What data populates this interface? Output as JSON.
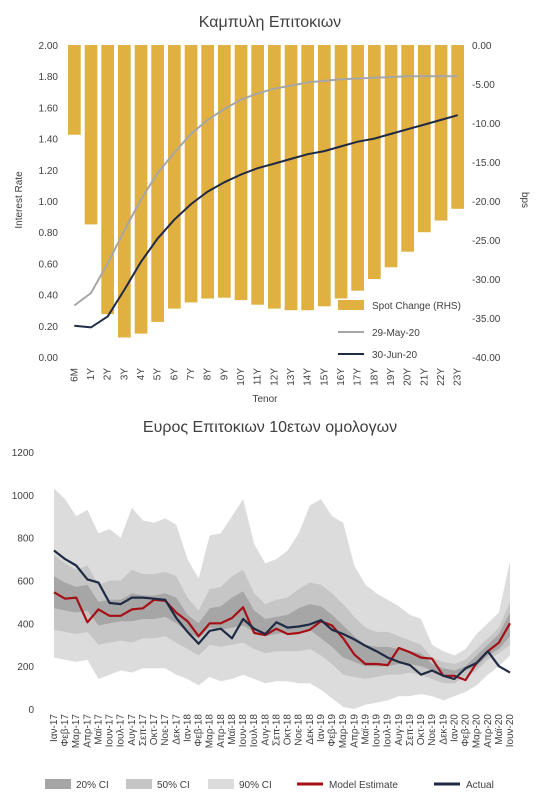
{
  "chart_data": [
    {
      "type": "bar",
      "title": "Καμπυλη Επιτοκιων",
      "xlabel": "Tenor",
      "ylabel": "Interest Rate",
      "y2label": "bps",
      "categories": [
        "6M",
        "1Y",
        "2Y",
        "3Y",
        "4Y",
        "5Y",
        "6Y",
        "7Y",
        "8Y",
        "9Y",
        "10Y",
        "11Y",
        "12Y",
        "13Y",
        "14Y",
        "15Y",
        "16Y",
        "17Y",
        "18Y",
        "19Y",
        "20Y",
        "21Y",
        "22Y",
        "23Y"
      ],
      "ylim": [
        0,
        2.0
      ],
      "yticks": [
        "0.00",
        "0.20",
        "0.40",
        "0.60",
        "0.80",
        "1.00",
        "1.20",
        "1.40",
        "1.60",
        "1.80",
        "2.00"
      ],
      "y2lim": [
        -40,
        0
      ],
      "y2ticks": [
        "-40.00",
        "-35.00",
        "-30.00",
        "-25.00",
        "-20.00",
        "-15.00",
        "-10.00",
        "-5.00",
        "0.00"
      ],
      "series": [
        {
          "name": "Spot Change (RHS)",
          "type": "bar",
          "axis": "right",
          "color": "#E0B040",
          "values": [
            -11.5,
            -23,
            -34.5,
            -37.5,
            -37,
            -35.5,
            -33.8,
            -33,
            -32.5,
            -32.4,
            -32.7,
            -33.3,
            -33.8,
            -34,
            -34,
            -33.5,
            -32.5,
            -31.5,
            -30,
            -28.5,
            -26.5,
            -24,
            -22.5,
            -21
          ]
        },
        {
          "name": "29-May-20",
          "type": "line",
          "axis": "left",
          "color": "#A6A6A6",
          "values": [
            0.33,
            0.41,
            0.6,
            0.81,
            1.01,
            1.18,
            1.31,
            1.43,
            1.52,
            1.59,
            1.65,
            1.69,
            1.72,
            1.74,
            1.76,
            1.77,
            1.78,
            1.785,
            1.79,
            1.795,
            1.8,
            1.8,
            1.8,
            1.8
          ]
        },
        {
          "name": "30-Jun-20",
          "type": "line",
          "axis": "left",
          "color": "#1F2A44",
          "values": [
            0.2,
            0.19,
            0.26,
            0.43,
            0.61,
            0.76,
            0.88,
            0.98,
            1.06,
            1.12,
            1.17,
            1.21,
            1.24,
            1.27,
            1.3,
            1.32,
            1.35,
            1.38,
            1.4,
            1.43,
            1.46,
            1.49,
            1.52,
            1.55
          ]
        }
      ],
      "legend": "bottom-right"
    },
    {
      "type": "line",
      "title": "Ευρος Επιτοκιων 10ετων ομολογων",
      "x": [
        "Ιαν-17",
        "Φεβ-17",
        "Μαρ-17",
        "Απρ-17",
        "Μαϊ-17",
        "Ιουν-17",
        "Ιουλ-17",
        "Αυγ-17",
        "Σεπ-17",
        "Οκτ-17",
        "Νοε-17",
        "Δεκ-17",
        "Ιαν-18",
        "Φεβ-18",
        "Μαρ-18",
        "Απρ-18",
        "Μαϊ-18",
        "Ιουν-18",
        "Ιουλ-18",
        "Αυγ-18",
        "Σεπ-18",
        "Οκτ-18",
        "Νοε-18",
        "Δεκ-18",
        "Ιαν-19",
        "Φεβ-19",
        "Μαρ-19",
        "Απρ-19",
        "Μαϊ-19",
        "Ιουν-19",
        "Ιουλ-19",
        "Αυγ-19",
        "Σεπ-19",
        "Οκτ-19",
        "Νοε-19",
        "Δεκ-19",
        "Ιαν-20",
        "Φεβ-20",
        "Μαρ-20",
        "Απρ-20",
        "Μαϊ-20",
        "Ιουν-20"
      ],
      "ylim": [
        0,
        1200
      ],
      "yticks": [
        "0",
        "200",
        "400",
        "600",
        "800",
        "1000",
        "1200"
      ],
      "series": [
        {
          "name": "90% CI",
          "type": "band",
          "color": "#DCDCDC",
          "lower": [
            240,
            230,
            220,
            230,
            140,
            160,
            180,
            170,
            190,
            190,
            190,
            160,
            140,
            110,
            150,
            130,
            140,
            160,
            140,
            120,
            130,
            130,
            120,
            120,
            90,
            50,
            10,
            0,
            20,
            30,
            40,
            60,
            60,
            70,
            60,
            40,
            60,
            80,
            110,
            160,
            200,
            250
          ],
          "upper": [
            1030,
            980,
            900,
            930,
            820,
            840,
            800,
            940,
            880,
            870,
            890,
            860,
            700,
            610,
            810,
            820,
            900,
            980,
            770,
            680,
            700,
            740,
            820,
            950,
            980,
            900,
            870,
            670,
            580,
            540,
            510,
            480,
            440,
            420,
            300,
            270,
            250,
            280,
            350,
            400,
            450,
            690
          ]
        },
        {
          "name": "50% CI",
          "type": "band",
          "color": "#C6C6C6",
          "lower": [
            370,
            360,
            350,
            360,
            300,
            310,
            320,
            310,
            330,
            330,
            340,
            310,
            280,
            250,
            300,
            290,
            300,
            310,
            280,
            260,
            270,
            270,
            270,
            280,
            250,
            210,
            160,
            150,
            140,
            150,
            160,
            160,
            170,
            160,
            140,
            120,
            120,
            150,
            180,
            230,
            260,
            300
          ],
          "upper": [
            720,
            680,
            650,
            670,
            580,
            600,
            600,
            650,
            630,
            630,
            640,
            620,
            520,
            460,
            560,
            570,
            620,
            650,
            540,
            490,
            510,
            520,
            560,
            590,
            580,
            540,
            490,
            430,
            380,
            360,
            360,
            340,
            320,
            300,
            240,
            220,
            210,
            230,
            280,
            330,
            380,
            500
          ]
        },
        {
          "name": "20% CI",
          "type": "band",
          "color": "#A6A6A6",
          "lower": [
            470,
            460,
            450,
            460,
            390,
            400,
            410,
            410,
            420,
            420,
            430,
            400,
            360,
            330,
            380,
            370,
            380,
            390,
            360,
            340,
            350,
            360,
            360,
            370,
            330,
            290,
            240,
            220,
            200,
            200,
            200,
            210,
            210,
            200,
            180,
            160,
            160,
            180,
            200,
            250,
            280,
            340
          ],
          "upper": [
            620,
            590,
            570,
            580,
            500,
            510,
            510,
            540,
            530,
            530,
            540,
            520,
            440,
            400,
            470,
            480,
            520,
            550,
            460,
            420,
            430,
            440,
            470,
            490,
            480,
            440,
            390,
            340,
            300,
            290,
            290,
            280,
            270,
            260,
            210,
            190,
            180,
            200,
            250,
            300,
            350,
            450
          ]
        },
        {
          "name": "Model Estimate",
          "type": "line",
          "color": "#A50F15",
          "values": [
            545,
            515,
            520,
            405,
            465,
            435,
            435,
            465,
            470,
            510,
            505,
            450,
            410,
            340,
            400,
            400,
            425,
            475,
            355,
            345,
            375,
            350,
            355,
            370,
            410,
            390,
            330,
            255,
            210,
            210,
            205,
            285,
            265,
            240,
            235,
            155,
            155,
            135,
            215,
            270,
            310,
            400
          ]
        },
        {
          "name": "Actual",
          "type": "line",
          "color": "#1F2A44",
          "values": [
            740,
            700,
            670,
            605,
            590,
            495,
            490,
            520,
            520,
            515,
            510,
            425,
            360,
            305,
            365,
            375,
            330,
            420,
            375,
            350,
            405,
            380,
            385,
            395,
            415,
            370,
            350,
            325,
            295,
            270,
            240,
            220,
            205,
            160,
            180,
            155,
            140,
            190,
            215,
            270,
            200,
            170
          ]
        }
      ],
      "legend": "bottom"
    }
  ]
}
